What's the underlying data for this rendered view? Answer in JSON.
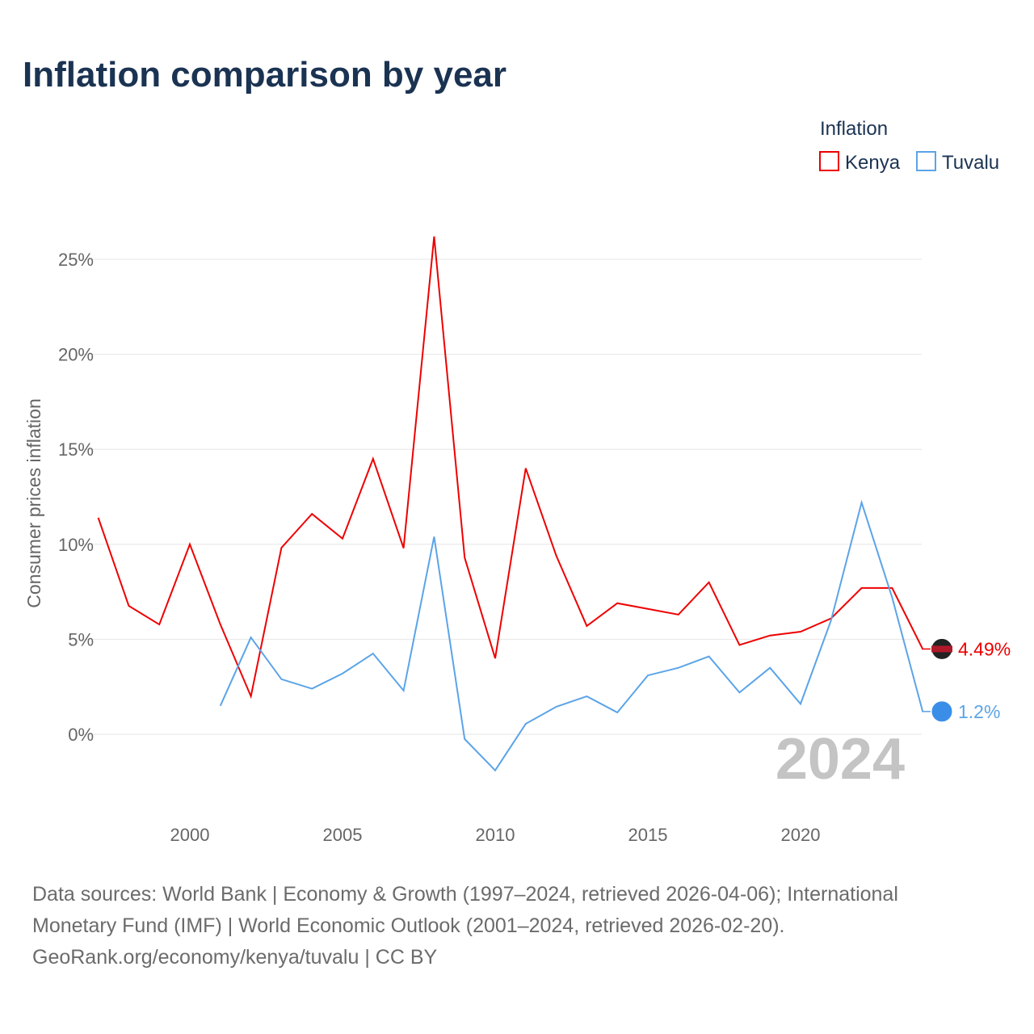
{
  "title": "Inflation comparison by year",
  "chart_data": {
    "type": "line",
    "title": "Inflation comparison by year",
    "xlabel": "",
    "ylabel": "Consumer prices inflation",
    "legend_title": "Inflation",
    "legend_position": "top-right",
    "ylim": [
      -3.5,
      26.5
    ],
    "xlim": [
      1997,
      2024
    ],
    "yticks": [
      0,
      5,
      10,
      15,
      20,
      25
    ],
    "ytick_labels": [
      "0%",
      "5%",
      "10%",
      "15%",
      "20%",
      "25%"
    ],
    "xticks": [
      2000,
      2005,
      2010,
      2015,
      2020
    ],
    "xtick_labels": [
      "2000",
      "2005",
      "2010",
      "2015",
      "2020"
    ],
    "year_label": "2024",
    "series": [
      {
        "name": "Kenya",
        "color": "#ee0000",
        "end_label": "4.49%",
        "x": [
          1997,
          1998,
          1999,
          2000,
          2001,
          2002,
          2003,
          2004,
          2005,
          2006,
          2007,
          2008,
          2009,
          2010,
          2011,
          2012,
          2013,
          2014,
          2015,
          2016,
          2017,
          2018,
          2019,
          2020,
          2021,
          2022,
          2023,
          2024
        ],
        "values": [
          11.4,
          6.76,
          5.78,
          10.0,
          5.78,
          2.0,
          9.82,
          11.6,
          10.3,
          14.5,
          9.8,
          26.2,
          9.3,
          4.0,
          14.0,
          9.4,
          5.7,
          6.9,
          6.6,
          6.3,
          8.0,
          4.7,
          5.2,
          5.4,
          6.1,
          7.7,
          7.7,
          4.49
        ]
      },
      {
        "name": "Tuvalu",
        "color": "#5ba4e8",
        "end_label": "1.2%",
        "x": [
          2001,
          2002,
          2003,
          2004,
          2005,
          2006,
          2007,
          2008,
          2009,
          2010,
          2011,
          2012,
          2013,
          2014,
          2015,
          2016,
          2017,
          2018,
          2019,
          2020,
          2021,
          2022,
          2023,
          2024
        ],
        "values": [
          1.5,
          5.1,
          2.9,
          2.4,
          3.2,
          4.25,
          2.3,
          10.4,
          -0.25,
          -1.9,
          0.55,
          1.45,
          2.0,
          1.15,
          3.1,
          3.5,
          4.1,
          2.2,
          3.5,
          1.6,
          6.0,
          12.2,
          7.2,
          1.2
        ]
      }
    ]
  },
  "source": {
    "line1": "Data sources: World Bank | Economy & Growth (1997–2024, retrieved 2026-04-06); International",
    "line2": "Monetary Fund (IMF) | World Economic Outlook (2001–2024, retrieved 2026-02-20).",
    "line3": "GeoRank.org/economy/kenya/tuvalu | CC BY"
  }
}
